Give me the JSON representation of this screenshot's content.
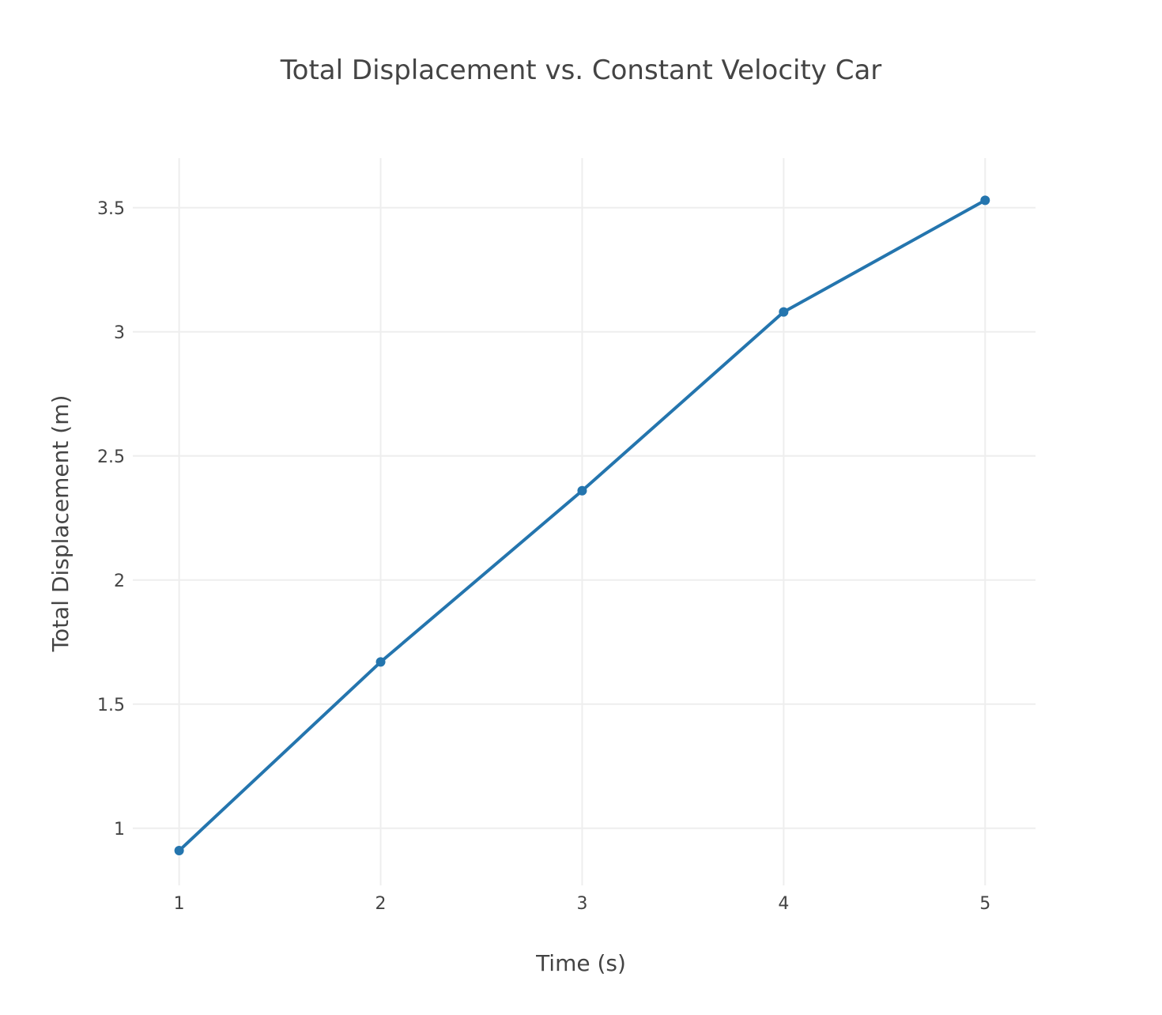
{
  "chart_data": {
    "type": "line",
    "title": "Total Displacement vs. Constant Velocity Car",
    "xlabel": "Time (s)",
    "ylabel": "Total Displacement (m)",
    "x": [
      1,
      2,
      3,
      4,
      5
    ],
    "series": [
      {
        "values": [
          0.91,
          1.67,
          2.36,
          3.08,
          3.53
        ],
        "color": "#2475ae",
        "markers": true
      }
    ],
    "xlim": [
      0.77,
      5.25
    ],
    "ylim": [
      0.77,
      3.7
    ],
    "xticks": [
      1,
      2,
      3,
      4,
      5
    ],
    "xtick_labels": [
      "1",
      "2",
      "3",
      "4",
      "5"
    ],
    "yticks": [
      1,
      1.5,
      2,
      2.5,
      3,
      3.5
    ],
    "ytick_labels": [
      "1",
      "1.5",
      "2",
      "2.5",
      "3",
      "3.5"
    ],
    "grid": true,
    "legend": false
  }
}
